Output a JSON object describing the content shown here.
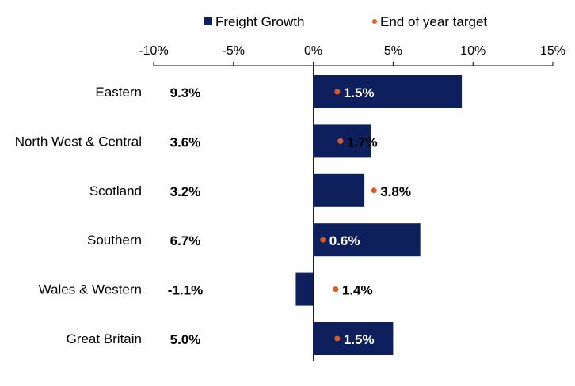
{
  "chart_data": {
    "type": "bar",
    "orientation": "horizontal",
    "title": "",
    "xlabel": "",
    "ylabel": "",
    "xlim": [
      -10,
      15
    ],
    "x_ticks": [
      "-10%",
      "-5%",
      "0%",
      "5%",
      "10%",
      "15%"
    ],
    "x_tick_values": [
      -10,
      -5,
      0,
      5,
      10,
      15
    ],
    "x_axis_position": "top",
    "legend_position": "top",
    "grid": false,
    "categories": [
      "Eastern",
      "North West & Central",
      "Scotland",
      "Southern",
      "Wales & Western",
      "Great Britain"
    ],
    "series": [
      {
        "name": "Freight Growth",
        "kind": "bar",
        "color": "#0d1f5c",
        "values": [
          9.3,
          3.6,
          3.2,
          6.7,
          -1.1,
          5.0
        ],
        "labels": [
          "9.3%",
          "3.6%",
          "3.2%",
          "6.7%",
          "-1.1%",
          "5.0%"
        ]
      },
      {
        "name": "End of year target",
        "kind": "dot",
        "color": "#e05a1e",
        "values": [
          1.5,
          1.7,
          3.8,
          0.6,
          1.4,
          1.5
        ],
        "labels": [
          "1.5%",
          "1.7%",
          "3.8%",
          "0.6%",
          "1.4%",
          "1.5%"
        ]
      }
    ]
  }
}
